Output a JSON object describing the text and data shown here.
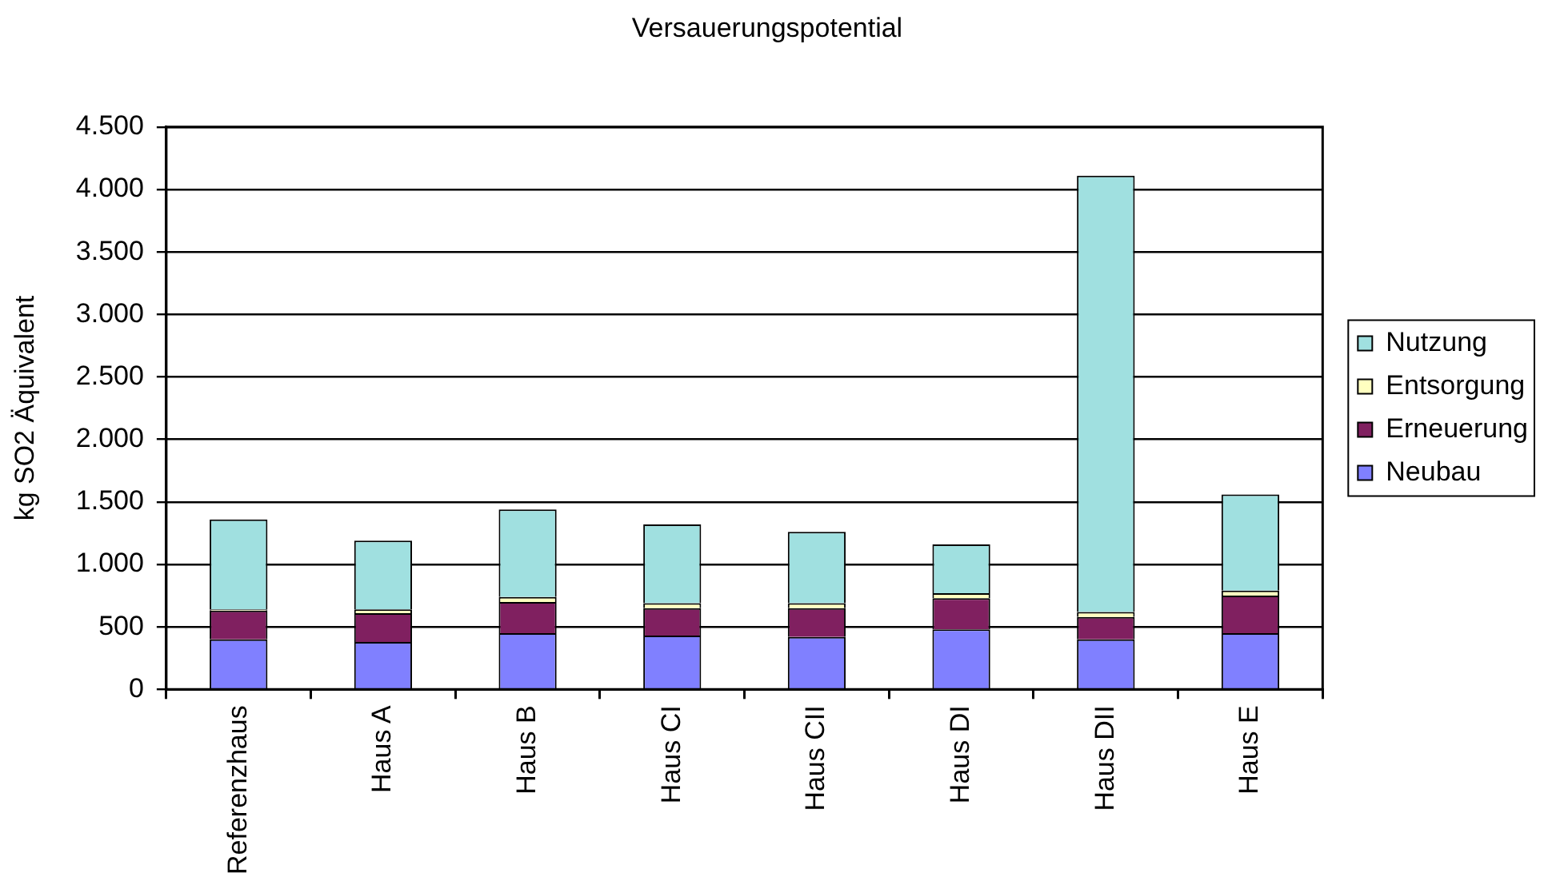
{
  "chart_data": {
    "type": "bar",
    "title": "Versauerungspotential",
    "ylabel": "kg SO2 Äquivalent",
    "categories": [
      "Referenzhaus",
      "Haus A",
      "Haus B",
      "Haus CI",
      "Haus CII",
      "Haus DI",
      "Haus DII",
      "Haus E"
    ],
    "series": [
      {
        "name": "Neubau",
        "color": "#8080ff",
        "values": [
          400,
          380,
          450,
          430,
          420,
          480,
          400,
          450
        ]
      },
      {
        "name": "Erneuerung",
        "color": "#802060",
        "values": [
          230,
          230,
          250,
          220,
          230,
          250,
          180,
          300
        ]
      },
      {
        "name": "Entsorgung",
        "color": "#ffffc0",
        "values": [
          10,
          30,
          40,
          40,
          40,
          40,
          40,
          40
        ]
      },
      {
        "name": "Nutzung",
        "color": "#a0e0e0",
        "values": [
          720,
          550,
          700,
          630,
          570,
          390,
          3490,
          770
        ]
      }
    ],
    "stacked": true,
    "ylim": [
      0,
      4500
    ],
    "yticks": [
      0,
      500,
      {
        "value": 1000,
        "label": "1.000"
      },
      {
        "value": 1500,
        "label": "1.500"
      },
      {
        "value": 2000,
        "label": "2.000"
      },
      {
        "value": 2500,
        "label": "2.500"
      },
      {
        "value": 3000,
        "label": "3.000"
      },
      {
        "value": 3500,
        "label": "3.500"
      },
      {
        "value": 4000,
        "label": "4.000"
      },
      {
        "value": 4500,
        "label": "4.500"
      }
    ],
    "grid": "y",
    "legend": "right"
  }
}
